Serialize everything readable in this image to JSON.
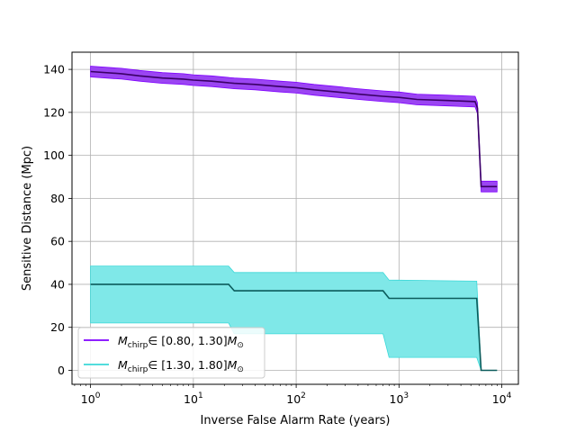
{
  "chart_data": {
    "type": "line",
    "xlabel": "Inverse False Alarm Rate (years)",
    "ylabel": "Sensitive Distance (Mpc)",
    "xscale": "log",
    "xlim": [
      0.66,
      14500
    ],
    "ylim": [
      -6.5,
      148
    ],
    "x_ticks": [
      1,
      10,
      100,
      1000,
      10000
    ],
    "x_tick_labels": [
      {
        "base": "10",
        "exp": "0"
      },
      {
        "base": "10",
        "exp": "1"
      },
      {
        "base": "10",
        "exp": "2"
      },
      {
        "base": "10",
        "exp": "3"
      },
      {
        "base": "10",
        "exp": "4"
      }
    ],
    "y_ticks": [
      0,
      20,
      40,
      60,
      80,
      100,
      120,
      140
    ],
    "grid": true,
    "legend_position": "lower-left",
    "series": [
      {
        "name": "M_chirp ∈ [0.80, 1.30] M_⊙",
        "legend": {
          "symbol": "M",
          "sub": "chirp",
          "range": "∈ [0.80, 1.30]",
          "unit": "M",
          "unit_sub": "⊙"
        },
        "color": "#7f00ff",
        "fill_color": "#9b45f2",
        "line_color": "#3a0066",
        "band_half_width": 2.5,
        "x": [
          1,
          2,
          3,
          5,
          8,
          10,
          15,
          25,
          40,
          70,
          100,
          150,
          250,
          400,
          700,
          1000,
          1500,
          3000,
          5500,
          5800,
          6300,
          9000
        ],
        "y": [
          139,
          138,
          137,
          136,
          135.5,
          135,
          134.5,
          133.5,
          133,
          132,
          131.5,
          130.5,
          129.5,
          128.5,
          127.5,
          127,
          126,
          125.5,
          125,
          122,
          85.5,
          85.5
        ]
      },
      {
        "name": "M_chirp ∈ [1.30, 1.80] M_⊙",
        "legend": {
          "symbol": "M",
          "sub": "chirp",
          "range": "∈ [1.30, 1.80]",
          "unit": "M",
          "unit_sub": "⊙"
        },
        "color": "#3ad8d8",
        "fill_color": "#7fe8e8",
        "line_color": "#0b5b5b",
        "x": [
          1,
          22,
          25,
          700,
          800,
          5700,
          6300,
          9000
        ],
        "y": [
          40,
          40,
          37,
          37,
          33.5,
          33.5,
          0,
          0
        ],
        "upper": [
          48.5,
          48.5,
          45.5,
          45.5,
          42,
          41.5,
          0,
          0
        ],
        "lower": [
          22,
          22,
          17,
          17,
          6,
          6,
          0,
          0
        ]
      }
    ]
  }
}
